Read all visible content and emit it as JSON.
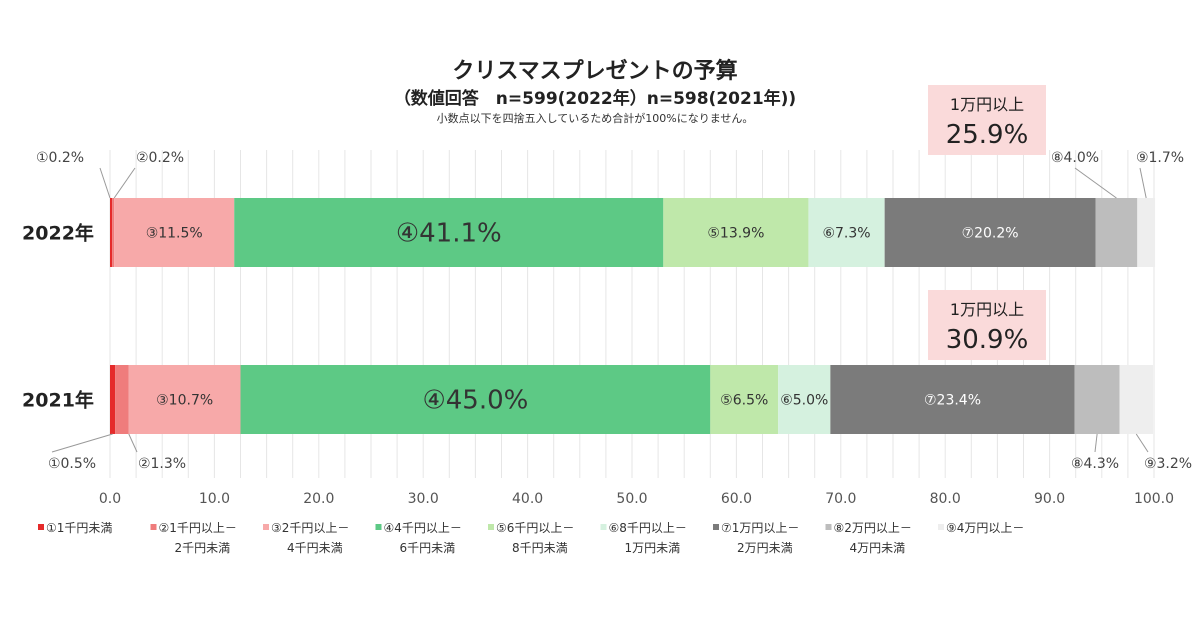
{
  "chart_data": {
    "type": "bar",
    "orientation": "horizontal-stacked",
    "title": "クリスマスプレゼントの予算",
    "subtitle": "（数値回答　n=599(2022年）n=598(2021年))",
    "note": "小数点以下を四捨五入しているため合計が100%になりません。",
    "categories": [
      "2022年",
      "2021年"
    ],
    "xlim": [
      0,
      100
    ],
    "xticks": [
      "0.0",
      "10.0",
      "20.0",
      "30.0",
      "40.0",
      "50.0",
      "60.0",
      "70.0",
      "80.0",
      "90.0",
      "100.0"
    ],
    "grid": true,
    "legend_position": "bottom",
    "series": [
      {
        "name": "①1千円未満",
        "marker": "①",
        "values": [
          0.2,
          0.5
        ],
        "color": "#e52a2a"
      },
      {
        "name": "②1千円以上－2千円未満",
        "marker": "②",
        "values": [
          0.2,
          1.3
        ],
        "color": "#ef7c7c"
      },
      {
        "name": "③2千円以上－4千円未満",
        "marker": "③",
        "values": [
          11.5,
          10.7
        ],
        "color": "#f7a9a9"
      },
      {
        "name": "④4千円以上－6千円未満",
        "marker": "④",
        "values": [
          41.1,
          45.0
        ],
        "color": "#5dc985"
      },
      {
        "name": "⑤6千円以上－8千円未満",
        "marker": "⑤",
        "values": [
          13.9,
          6.5
        ],
        "color": "#bfe8aa"
      },
      {
        "name": "⑥8千円以上－1万円未満",
        "marker": "⑥",
        "values": [
          7.3,
          5.0
        ],
        "color": "#d5f1df"
      },
      {
        "name": "⑦1万円以上－2万円未満",
        "marker": "⑦",
        "values": [
          20.2,
          23.4
        ],
        "color": "#7b7b7b"
      },
      {
        "name": "⑧2万円以上－4万円未満",
        "marker": "⑧",
        "values": [
          4.0,
          4.3
        ],
        "color": "#bdbdbd"
      },
      {
        "name": "⑨4万円以上－",
        "marker": "⑨",
        "values": [
          1.7,
          3.2
        ],
        "color": "#eeeeee"
      }
    ],
    "annotations": [
      {
        "label": "1万円以上",
        "value": "25.9%",
        "category": "2022年"
      },
      {
        "label": "1万円以上",
        "value": "30.9%",
        "category": "2021年"
      }
    ]
  }
}
